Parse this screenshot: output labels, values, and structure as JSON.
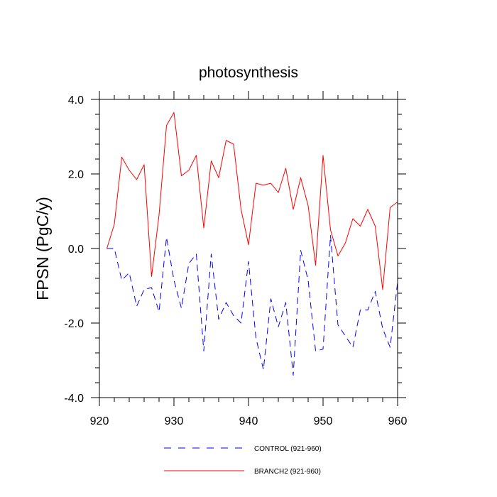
{
  "chart_data": {
    "type": "line",
    "title": "photosynthesis",
    "xlabel": "",
    "ylabel": "FPSN  (PgC/y)",
    "xlim": [
      920,
      960
    ],
    "ylim": [
      -4.0,
      4.0
    ],
    "xticks": [
      920,
      930,
      940,
      950,
      960
    ],
    "xtick_labels": [
      "920",
      "930",
      "940",
      "950",
      "960"
    ],
    "yticks": [
      4.0,
      2.0,
      0.0,
      -2.0,
      -4.0
    ],
    "ytick_labels": [
      "4.0",
      "2.0",
      "0.0",
      "-2.0",
      "-4.0"
    ],
    "x": [
      921,
      922,
      923,
      924,
      925,
      926,
      927,
      928,
      929,
      930,
      931,
      932,
      933,
      934,
      935,
      936,
      937,
      938,
      939,
      940,
      941,
      942,
      943,
      944,
      945,
      946,
      947,
      948,
      949,
      950,
      951,
      952,
      953,
      954,
      955,
      956,
      957,
      958,
      959,
      960
    ],
    "series": [
      {
        "name": "CONTROL (921-960)",
        "color": "#0000ff",
        "style": "dashed",
        "values": [
          0.0,
          0.0,
          -0.85,
          -0.65,
          -1.55,
          -1.1,
          -1.05,
          -1.7,
          0.3,
          -0.85,
          -1.6,
          -0.4,
          -0.15,
          -2.75,
          -0.15,
          -1.9,
          -1.45,
          -1.8,
          -2.0,
          -0.35,
          -2.4,
          -3.25,
          -1.35,
          -2.1,
          -1.45,
          -3.4,
          -0.05,
          -0.85,
          -2.75,
          -2.7,
          0.35,
          -2.05,
          -2.35,
          -2.65,
          -1.65,
          -1.65,
          -1.15,
          -2.15,
          -2.65,
          -0.9
        ]
      },
      {
        "name": "BRANCH2 (921-960)",
        "color": "#ff0000",
        "style": "solid",
        "values": [
          0.0,
          0.65,
          2.45,
          2.1,
          1.85,
          2.25,
          -0.75,
          0.9,
          3.3,
          3.65,
          1.95,
          2.1,
          2.5,
          0.55,
          2.35,
          1.9,
          2.9,
          2.8,
          1.05,
          0.1,
          1.75,
          1.7,
          1.75,
          1.5,
          2.15,
          1.05,
          1.9,
          1.15,
          -0.45,
          2.5,
          0.5,
          -0.2,
          0.15,
          0.8,
          0.6,
          1.05,
          0.6,
          -1.1,
          1.1,
          1.25
        ]
      }
    ],
    "legend_position": "bottom"
  }
}
